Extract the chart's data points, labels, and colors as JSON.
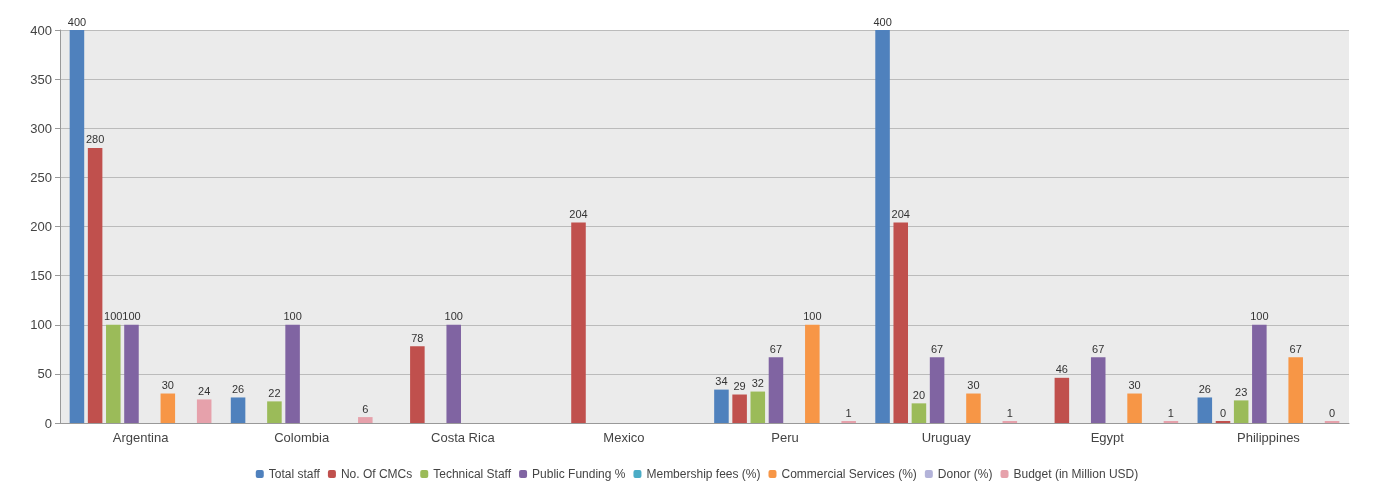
{
  "chart_data": {
    "type": "bar",
    "categories": [
      "Argentina",
      "Colombia",
      "Costa Rica",
      "Mexico",
      "Peru",
      "Uruguay",
      "Egypt",
      "Philippines"
    ],
    "series": [
      {
        "name": "Total staff",
        "color": "#4f81bd",
        "values": [
          400,
          26,
          null,
          null,
          34,
          400,
          null,
          26
        ]
      },
      {
        "name": "No. Of CMCs",
        "color": "#c0504d",
        "values": [
          280,
          null,
          78,
          204,
          29,
          204,
          46,
          0
        ]
      },
      {
        "name": "Technical Staff",
        "color": "#9bbb59",
        "values": [
          100,
          22,
          null,
          null,
          32,
          20,
          null,
          23
        ]
      },
      {
        "name": "Public Funding %",
        "color": "#8064a2",
        "values": [
          100,
          100,
          100,
          null,
          67,
          67,
          67,
          100
        ]
      },
      {
        "name": "Membership fees (%)",
        "color": "#4bacc6",
        "values": [
          null,
          null,
          null,
          null,
          null,
          null,
          null,
          null
        ]
      },
      {
        "name": "Commercial Services (%)",
        "color": "#f79646",
        "values": [
          30,
          null,
          null,
          null,
          100,
          30,
          30,
          67
        ]
      },
      {
        "name": "Donor (%)",
        "color": "#b3b3d9",
        "values": [
          null,
          null,
          null,
          null,
          null,
          null,
          null,
          null
        ]
      },
      {
        "name": "Budget (in Million USD)",
        "color": "#e6a1ab",
        "values": [
          24,
          6,
          null,
          null,
          1,
          1,
          1,
          0
        ]
      }
    ],
    "ylim": [
      0,
      400
    ],
    "yticks": [
      0,
      50,
      100,
      150,
      200,
      250,
      300,
      350,
      400
    ],
    "grid": "y",
    "legend": "bottom",
    "data_labels": true
  }
}
